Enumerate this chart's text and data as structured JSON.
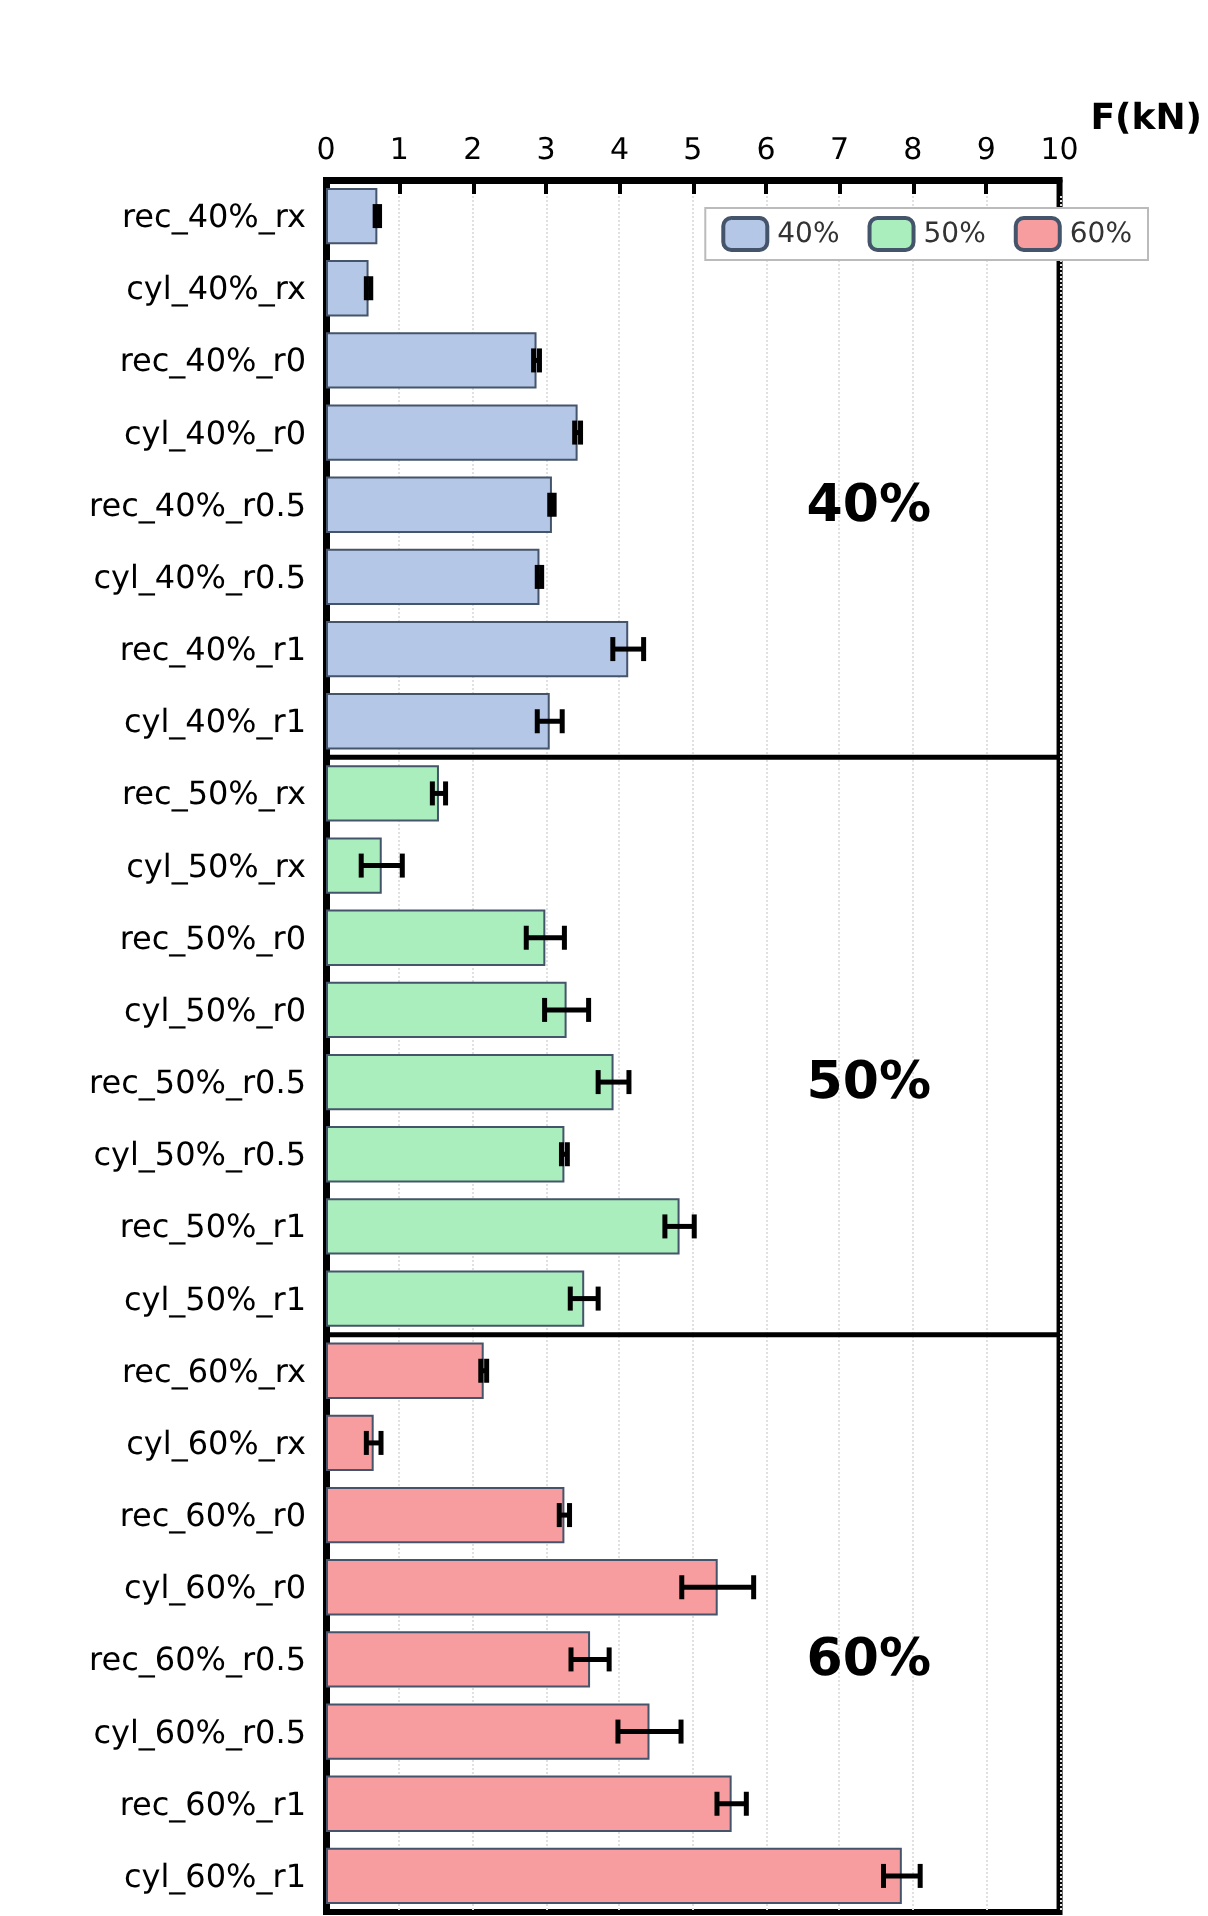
{
  "chart_data": {
    "type": "bar",
    "orientation": "horizontal",
    "xlabel": "F(kN)",
    "categories": [
      "rec_40%_rx",
      "cyl_40%_rx",
      "rec_40%_r0",
      "cyl_40%_r0",
      "rec_40%_r0.5",
      "cyl_40%_r0.5",
      "rec_40%_r1",
      "cyl_40%_r1",
      "rec_50%_rx",
      "cyl_50%_rx",
      "rec_50%_r0",
      "cyl_50%_r0",
      "rec_50%_r0.5",
      "cyl_50%_r0.5",
      "rec_50%_r1",
      "cyl_50%_r1",
      "rec_60%_rx",
      "cyl_60%_rx",
      "rec_60%_r0",
      "cyl_60%_r0",
      "rec_60%_r0.5",
      "cyl_60%_r0.5",
      "rec_60%_r1",
      "cyl_60%_r1"
    ],
    "series": [
      {
        "name": "40%",
        "color": "#b4c7e7",
        "values": [
          0.7,
          0.58,
          2.87,
          3.43,
          3.08,
          2.91,
          4.12,
          3.05,
          null,
          null,
          null,
          null,
          null,
          null,
          null,
          null,
          null,
          null,
          null,
          null,
          null,
          null,
          null,
          null
        ],
        "errors": [
          0.03,
          0.03,
          0.04,
          0.04,
          0.03,
          0.03,
          0.21,
          0.17,
          null,
          null,
          null,
          null,
          null,
          null,
          null,
          null,
          null,
          null,
          null,
          null,
          null,
          null,
          null,
          null
        ]
      },
      {
        "name": "50%",
        "color": "#a9eebc",
        "values": [
          null,
          null,
          null,
          null,
          null,
          null,
          null,
          null,
          1.54,
          0.76,
          2.99,
          3.28,
          3.92,
          3.25,
          4.82,
          3.52,
          null,
          null,
          null,
          null,
          null,
          null,
          null,
          null
        ],
        "errors": [
          null,
          null,
          null,
          null,
          null,
          null,
          null,
          null,
          0.09,
          0.28,
          0.26,
          0.3,
          0.21,
          0.04,
          0.2,
          0.19,
          null,
          null,
          null,
          null,
          null,
          null,
          null,
          null
        ]
      },
      {
        "name": "60%",
        "color": "#f79d9f",
        "values": [
          null,
          null,
          null,
          null,
          null,
          null,
          null,
          null,
          null,
          null,
          null,
          null,
          null,
          null,
          null,
          null,
          2.15,
          0.65,
          3.25,
          5.34,
          3.6,
          4.41,
          5.53,
          7.85
        ],
        "errors": [
          null,
          null,
          null,
          null,
          null,
          null,
          null,
          null,
          null,
          null,
          null,
          null,
          null,
          null,
          null,
          null,
          0.04,
          0.1,
          0.07,
          0.49,
          0.26,
          0.43,
          0.2,
          0.25
        ]
      }
    ],
    "xlim": [
      0,
      10
    ],
    "xticks": [
      0,
      1,
      2,
      3,
      4,
      5,
      6,
      7,
      8,
      9,
      10
    ],
    "grid": "x",
    "legend": "top right",
    "annotations": [
      "40%",
      "50%",
      "60%"
    ]
  }
}
